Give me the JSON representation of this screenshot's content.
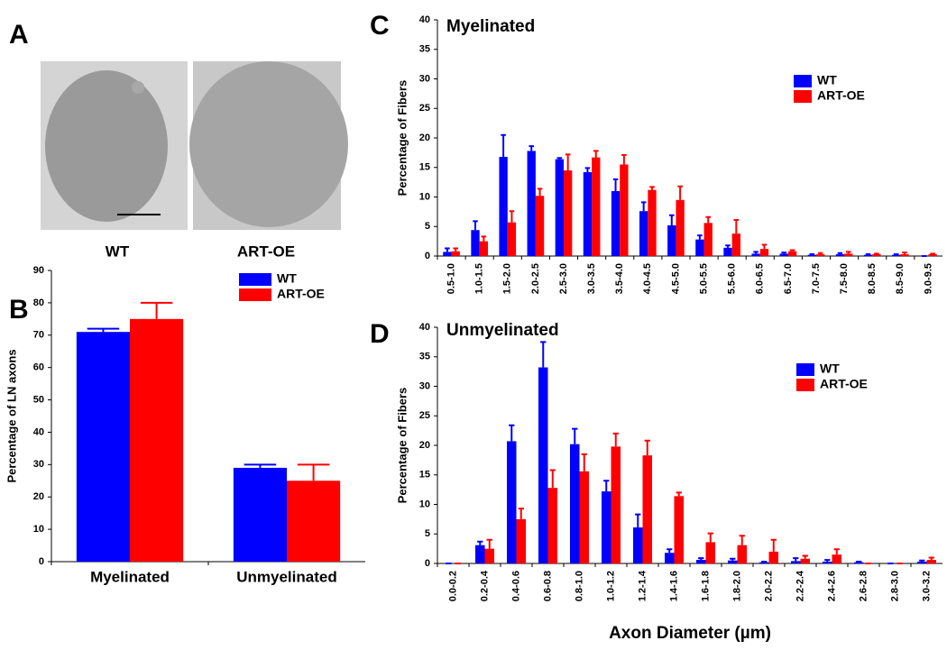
{
  "panel_a": {
    "letter": "A",
    "labels": [
      "WT",
      "ART-OE"
    ]
  },
  "chart_data": [
    {
      "type": "bar",
      "panel_label": "B",
      "ylabel": "Percentage of LN axons",
      "categories": [
        "Myelinated",
        "Unmyelinated"
      ],
      "series": [
        {
          "name": "WT",
          "color": "#0000ff",
          "values": [
            71,
            29
          ],
          "errors": [
            1,
            1
          ]
        },
        {
          "name": "ART-OE",
          "color": "#ff0000",
          "values": [
            75,
            25
          ],
          "errors": [
            5,
            5
          ]
        }
      ],
      "ylim": [
        0,
        90
      ],
      "yticks": [
        0,
        10,
        20,
        30,
        40,
        50,
        60,
        70,
        80,
        90
      ]
    },
    {
      "type": "bar",
      "panel_label": "C",
      "title": "Myelinated",
      "ylabel": "Percentage of Fibers",
      "categories": [
        "0.5-1.0",
        "1.0-1.5",
        "1.5-2.0",
        "2.0-2.5",
        "2.5-3.0",
        "3.0-3.5",
        "3.5-4.0",
        "4.0-4.5",
        "4.5-5.0",
        "5.0-5.5",
        "5.5-6.0",
        "6.0-6.5",
        "6.5-7.0",
        "7.0-7.5",
        "7.5-8.0",
        "8.0-8.5",
        "8.5-9.0",
        "9.0-9.5"
      ],
      "series": [
        {
          "name": "WT",
          "color": "#0000ff",
          "values": [
            0.7,
            4.4,
            16.8,
            17.8,
            16.4,
            14.2,
            11,
            7.6,
            5.2,
            2.8,
            1.4,
            0.4,
            0.4,
            0.2,
            0.3,
            0.2,
            0.2,
            0
          ],
          "errors": [
            0.6,
            1.5,
            3.7,
            0.8,
            0.2,
            0.7,
            2,
            1.5,
            1.7,
            0.7,
            0.4,
            0.3,
            0.2,
            0.1,
            0.2,
            0.1,
            0.1,
            0
          ]
        },
        {
          "name": "ART-OE",
          "color": "#ff0000",
          "values": [
            0.8,
            2.5,
            5.7,
            10.2,
            14.5,
            16.7,
            15.5,
            11.2,
            9.5,
            5.6,
            3.8,
            1.2,
            0.8,
            0.3,
            0.4,
            0.3,
            0.3,
            0.3
          ],
          "errors": [
            0.5,
            0.8,
            1.9,
            1.2,
            2.7,
            1.1,
            1.6,
            0.5,
            2.3,
            1,
            2.3,
            0.7,
            0.2,
            0.2,
            0.3,
            0.1,
            0.3,
            0.1
          ]
        }
      ],
      "ylim": [
        0,
        40
      ],
      "yticks": [
        0,
        5,
        10,
        15,
        20,
        25,
        30,
        35,
        40
      ]
    },
    {
      "type": "bar",
      "panel_label": "D",
      "title": "Unmyelinated",
      "ylabel": "Percentage of Fibers",
      "xlabel": "Axon Diameter (µm)",
      "categories": [
        "0.0-0.2",
        "0.2-0.4",
        "0.4-0.6",
        "0.6-0.8",
        "0.8-1.0",
        "1.0-1.2",
        "1.2-1.4",
        "1.4-1.6",
        "1.6-1.8",
        "1.8-2.0",
        "2.0-2.2",
        "2.2-2.4",
        "2.4-2.6",
        "2.6-2.8",
        "2.8-3.0",
        "3.0-3.2"
      ],
      "series": [
        {
          "name": "WT",
          "color": "#0000ff",
          "values": [
            0,
            3.1,
            20.7,
            33.2,
            20.2,
            12.2,
            6.1,
            1.8,
            0.6,
            0.5,
            0.2,
            0.4,
            0.3,
            0.2,
            0,
            0.3
          ],
          "errors": [
            0,
            0.6,
            2.7,
            4.3,
            2.6,
            1.8,
            2.2,
            0.6,
            0.3,
            0.3,
            0.1,
            0.5,
            0.3,
            0.1,
            0,
            0.2
          ]
        },
        {
          "name": "ART-OE",
          "color": "#ff0000",
          "values": [
            0,
            2.5,
            7.5,
            12.8,
            15.6,
            19.8,
            18.3,
            11.4,
            3.6,
            3.1,
            2,
            0.8,
            1.5,
            0,
            0,
            0.6
          ],
          "errors": [
            0,
            1.5,
            1.8,
            3,
            2.9,
            2.2,
            2.5,
            0.6,
            1.5,
            1.6,
            2,
            0.5,
            0.9,
            0,
            0,
            0.4
          ]
        }
      ],
      "ylim": [
        0,
        40
      ],
      "yticks": [
        0,
        5,
        10,
        15,
        20,
        25,
        30,
        35,
        40
      ]
    }
  ]
}
